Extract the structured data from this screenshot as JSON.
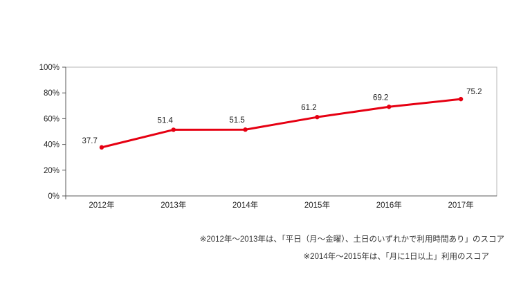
{
  "chart_data": {
    "type": "line",
    "title": "",
    "categories": [
      "2012年",
      "2013年",
      "2014年",
      "2015年",
      "2016年",
      "2017年"
    ],
    "values": [
      37.7,
      51.4,
      51.5,
      61.2,
      69.2,
      75.2
    ],
    "data_labels": [
      "37.7",
      "51.4",
      "51.5",
      "61.2",
      "69.2",
      "75.2"
    ],
    "xlabel": "",
    "ylabel": "",
    "ylim": [
      0,
      100
    ],
    "ytick_step": 20,
    "ytick_labels": [
      "0%",
      "20%",
      "40%",
      "60%",
      "80%",
      "100%"
    ],
    "grid": false,
    "legend": "none",
    "line_color": "#e60012",
    "axis_color": "#595959",
    "border_color": "#b7b7b7",
    "text_color": "#222222"
  },
  "footnotes": [
    "※2012年～2013年は、「平日（月～金曜）、土日のいずれかで利用時間あり」のスコア",
    "※2014年～2015年は、「月に1日以上」利用のスコア"
  ]
}
